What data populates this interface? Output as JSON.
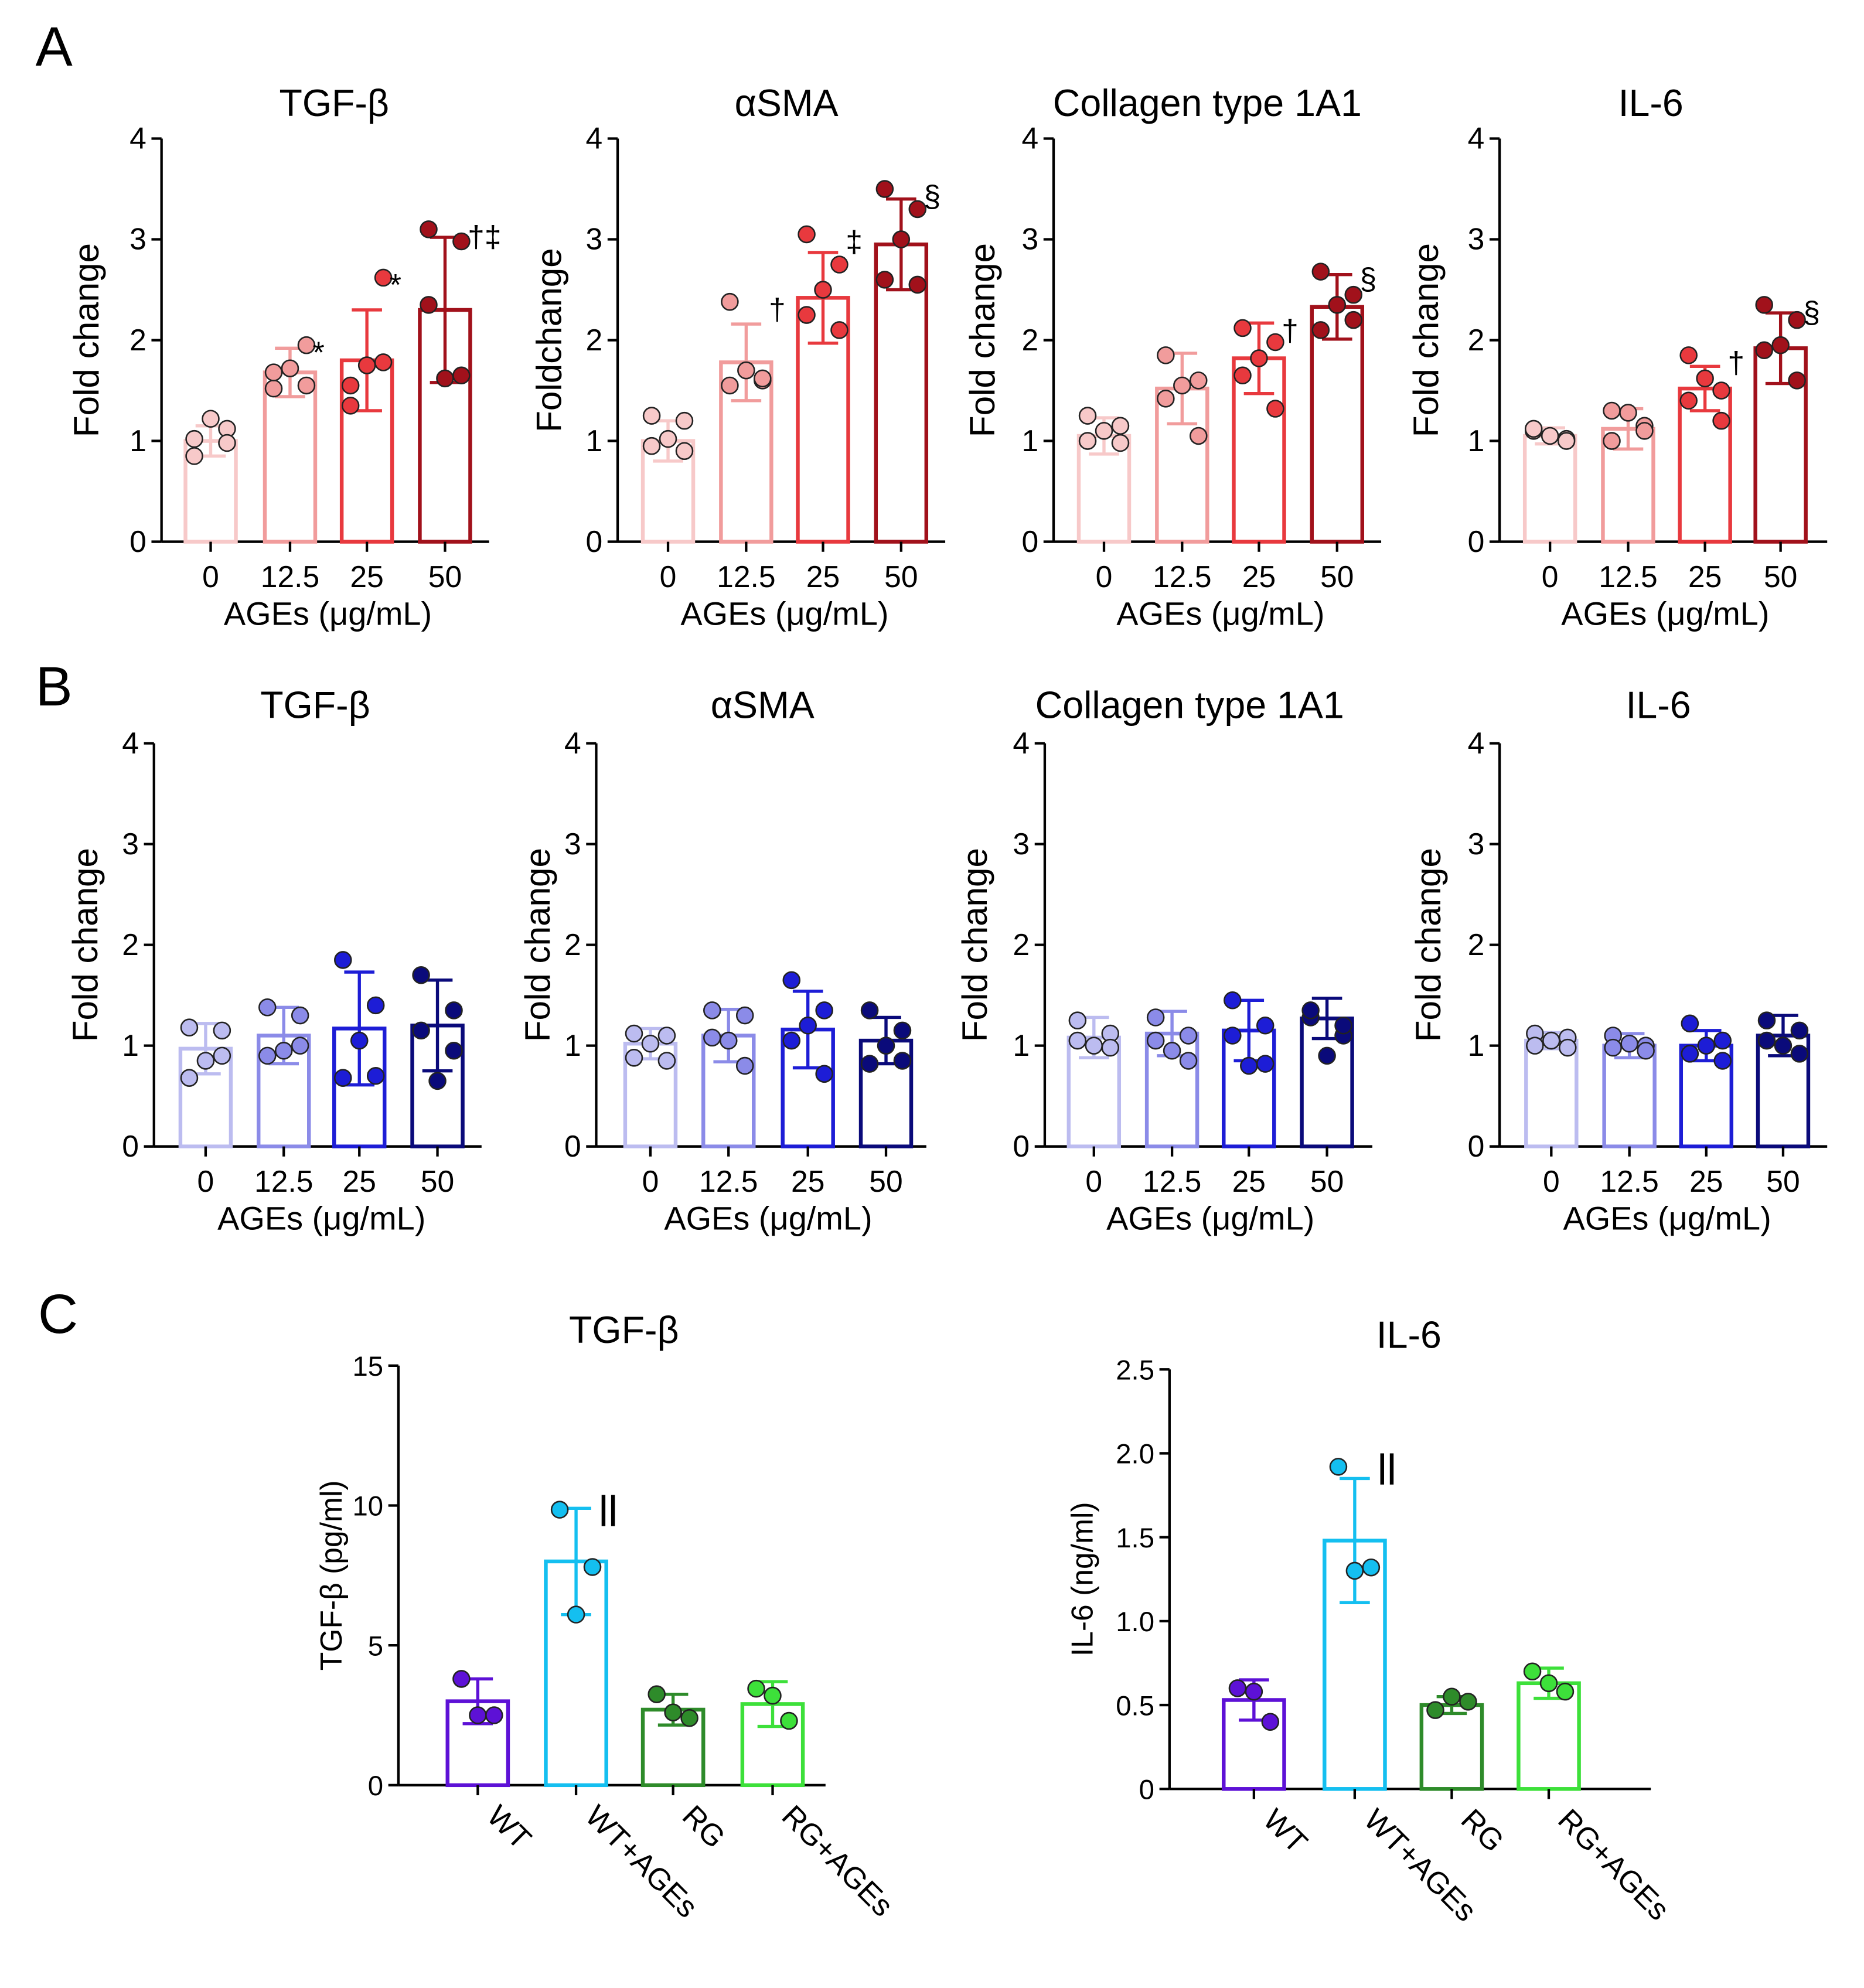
{
  "panel_labels": {
    "a": "A",
    "b": "B",
    "c": "C"
  },
  "colors": {
    "panelA": [
      "#f7c9c9",
      "#f19c9c",
      "#e8393e",
      "#a1111b"
    ],
    "panelB": [
      "#bcbcf0",
      "#8b8be8",
      "#1d1dd6",
      "#0a0a7a"
    ],
    "panelC": [
      "#5d11d6",
      "#14bff0",
      "#2e8b2a",
      "#3de03a"
    ]
  },
  "chart_data": [
    {
      "id": "A1",
      "panel": "A",
      "type": "bar",
      "title": "TGF-β",
      "ylabel": "Fold change",
      "xlabel": "AGEs (μg/mL)",
      "ylim": [
        0,
        4
      ],
      "yticks": [
        "0",
        "1",
        "2",
        "3",
        "4"
      ],
      "categories": [
        "0",
        "12.5",
        "25",
        "50"
      ],
      "values": [
        1.0,
        1.68,
        1.8,
        2.3
      ],
      "errors": [
        0.15,
        0.24,
        0.5,
        0.72
      ],
      "points": [
        [
          0.85,
          1.12,
          1.02,
          0.98,
          1.22
        ],
        [
          1.52,
          1.95,
          1.68,
          1.55,
          1.72
        ],
        [
          1.35,
          2.62,
          1.55,
          1.78,
          1.75
        ],
        [
          3.1,
          2.98,
          2.35,
          1.65,
          1.62
        ]
      ],
      "annotations": [
        "",
        "*",
        "*",
        "†‡"
      ]
    },
    {
      "id": "A2",
      "panel": "A",
      "type": "bar",
      "title": "αSMA",
      "ylabel": "Foldchange",
      "xlabel": "AGEs (μg/mL)",
      "ylim": [
        0,
        4
      ],
      "yticks": [
        "0",
        "1",
        "2",
        "3",
        "4"
      ],
      "categories": [
        "0",
        "12.5",
        "25",
        "50"
      ],
      "values": [
        1.0,
        1.78,
        2.42,
        2.95
      ],
      "errors": [
        0.2,
        0.38,
        0.45,
        0.45
      ],
      "points": [
        [
          1.25,
          1.2,
          0.95,
          0.9,
          1.02
        ],
        [
          2.38,
          1.6,
          1.55,
          1.62,
          1.7
        ],
        [
          3.05,
          2.75,
          2.25,
          2.1,
          2.5
        ],
        [
          3.5,
          3.3,
          2.6,
          2.55,
          3.0
        ]
      ],
      "annotations": [
        "",
        "†",
        "‡",
        "§"
      ]
    },
    {
      "id": "A3",
      "panel": "A",
      "type": "bar",
      "title": "Collagen type 1A1",
      "ylabel": "Fold change",
      "xlabel": "AGEs (μg/mL)",
      "ylim": [
        0,
        4
      ],
      "yticks": [
        "0",
        "1",
        "2",
        "3",
        "4"
      ],
      "categories": [
        "0",
        "12.5",
        "25",
        "50"
      ],
      "values": [
        1.05,
        1.52,
        1.82,
        2.33
      ],
      "errors": [
        0.18,
        0.35,
        0.35,
        0.32
      ],
      "points": [
        [
          1.25,
          1.15,
          1.0,
          0.98,
          1.1
        ],
        [
          1.85,
          1.6,
          1.42,
          1.05,
          1.55
        ],
        [
          2.12,
          1.98,
          1.65,
          1.32,
          1.82
        ],
        [
          2.68,
          2.45,
          2.1,
          2.2,
          2.35
        ]
      ],
      "annotations": [
        "",
        "",
        "†",
        "§"
      ]
    },
    {
      "id": "A4",
      "panel": "A",
      "type": "bar",
      "title": "IL-6",
      "ylabel": "Fold change",
      "xlabel": "AGEs (μg/mL)",
      "ylim": [
        0,
        4
      ],
      "yticks": [
        "0",
        "1",
        "2",
        "3",
        "4"
      ],
      "categories": [
        "0",
        "12.5",
        "25",
        "50"
      ],
      "values": [
        1.05,
        1.12,
        1.52,
        1.92
      ],
      "errors": [
        0.08,
        0.2,
        0.22,
        0.35
      ],
      "points": [
        [
          1.1,
          1.02,
          1.12,
          1.0,
          1.05
        ],
        [
          1.3,
          1.15,
          1.0,
          1.1,
          1.28
        ],
        [
          1.85,
          1.5,
          1.4,
          1.2,
          1.62
        ],
        [
          2.35,
          2.2,
          1.9,
          1.6,
          1.95
        ]
      ],
      "annotations": [
        "",
        "",
        "†",
        "§"
      ]
    },
    {
      "id": "B1",
      "panel": "B",
      "type": "bar",
      "title": "TGF-β",
      "ylabel": "Fold change",
      "xlabel": "AGEs (μg/mL)",
      "ylim": [
        0,
        4
      ],
      "yticks": [
        "0",
        "1",
        "2",
        "3",
        "4"
      ],
      "categories": [
        "0",
        "12.5",
        "25",
        "50"
      ],
      "values": [
        0.97,
        1.1,
        1.17,
        1.2
      ],
      "errors": [
        0.25,
        0.28,
        0.56,
        0.45
      ],
      "points": [
        [
          1.18,
          1.15,
          0.68,
          0.9,
          0.85
        ],
        [
          1.38,
          1.3,
          0.9,
          1.0,
          0.95
        ],
        [
          1.85,
          1.4,
          0.68,
          0.7,
          1.05
        ],
        [
          1.7,
          1.35,
          1.15,
          0.95,
          0.65
        ]
      ],
      "annotations": [
        "",
        "",
        "",
        ""
      ]
    },
    {
      "id": "B2",
      "panel": "B",
      "type": "bar",
      "title": "αSMA",
      "ylabel": "Fold change",
      "xlabel": "AGEs (μg/mL)",
      "ylim": [
        0,
        4
      ],
      "yticks": [
        "0",
        "1",
        "2",
        "3",
        "4"
      ],
      "categories": [
        "0",
        "12.5",
        "25",
        "50"
      ],
      "values": [
        1.02,
        1.1,
        1.16,
        1.05
      ],
      "errors": [
        0.15,
        0.26,
        0.38,
        0.23
      ],
      "points": [
        [
          1.12,
          1.1,
          0.88,
          0.85,
          1.02
        ],
        [
          1.35,
          1.3,
          1.08,
          0.8,
          1.05
        ],
        [
          1.65,
          1.35,
          1.05,
          0.72,
          1.2
        ],
        [
          1.35,
          1.15,
          0.82,
          0.85,
          1.0
        ]
      ],
      "annotations": [
        "",
        "",
        "",
        ""
      ]
    },
    {
      "id": "B3",
      "panel": "B",
      "type": "bar",
      "title": "Collagen type 1A1",
      "ylabel": "Fold change",
      "xlabel": "AGEs (μg/mL)",
      "ylim": [
        0,
        4
      ],
      "yticks": [
        "0",
        "1",
        "2",
        "3",
        "4"
      ],
      "categories": [
        "0",
        "12.5",
        "25",
        "50"
      ],
      "values": [
        1.08,
        1.12,
        1.15,
        1.27
      ],
      "errors": [
        0.2,
        0.22,
        0.3,
        0.2
      ],
      "points": [
        [
          1.25,
          1.12,
          1.05,
          0.98,
          1.0
        ],
        [
          1.28,
          1.1,
          1.05,
          0.85,
          0.95
        ],
        [
          1.45,
          1.2,
          1.1,
          0.82,
          0.8
        ],
        [
          1.28,
          1.1,
          1.35,
          1.2,
          0.9
        ]
      ],
      "annotations": [
        "",
        "",
        "",
        ""
      ]
    },
    {
      "id": "B4",
      "panel": "B",
      "type": "bar",
      "title": "IL-6",
      "ylabel": "Fold change",
      "xlabel": "AGEs (μg/mL)",
      "ylim": [
        0,
        4
      ],
      "yticks": [
        "0",
        "1",
        "2",
        "3",
        "4"
      ],
      "categories": [
        "0",
        "12.5",
        "25",
        "50"
      ],
      "values": [
        1.05,
        1.0,
        1.0,
        1.1
      ],
      "errors": [
        0.08,
        0.12,
        0.15,
        0.2
      ],
      "points": [
        [
          1.12,
          1.08,
          1.0,
          0.98,
          1.05
        ],
        [
          1.1,
          1.0,
          0.98,
          0.95,
          1.02
        ],
        [
          1.22,
          1.05,
          0.92,
          0.85,
          1.0
        ],
        [
          1.25,
          1.15,
          1.05,
          0.92,
          1.0
        ]
      ],
      "annotations": [
        "",
        "",
        "",
        ""
      ]
    },
    {
      "id": "C1",
      "panel": "C",
      "type": "bar",
      "title": "TGF-β",
      "ylabel": "TGF-β (pg/ml)",
      "xlabel": "",
      "ylim": [
        0,
        15
      ],
      "yticks": [
        "0",
        "5",
        "10",
        "15"
      ],
      "categories": [
        "WT",
        "WT+AGEs",
        "RG",
        "RG+AGEs"
      ],
      "values": [
        3.0,
        8.0,
        2.7,
        2.9
      ],
      "errors": [
        0.8,
        1.9,
        0.55,
        0.8
      ],
      "points": [
        [
          3.8,
          2.5,
          2.5
        ],
        [
          9.85,
          7.8,
          6.1
        ],
        [
          3.25,
          2.4,
          2.6
        ],
        [
          3.45,
          2.3,
          3.2
        ]
      ],
      "annotations": [
        "",
        "ll",
        "",
        ""
      ]
    },
    {
      "id": "C2",
      "panel": "C",
      "type": "bar",
      "title": "IL-6",
      "ylabel": "IL-6 (ng/ml)",
      "xlabel": "",
      "ylim": [
        0,
        2.5
      ],
      "yticks": [
        "0",
        "0.5",
        "1.0",
        "1.5",
        "2.0",
        "2.5"
      ],
      "categories": [
        "WT",
        "WT+AGEs",
        "RG",
        "RG+AGEs"
      ],
      "values": [
        0.53,
        1.48,
        0.5,
        0.63
      ],
      "errors": [
        0.12,
        0.37,
        0.05,
        0.09
      ],
      "points": [
        [
          0.6,
          0.4,
          0.58
        ],
        [
          1.92,
          1.32,
          1.3
        ],
        [
          0.47,
          0.52,
          0.55
        ],
        [
          0.7,
          0.58,
          0.63
        ]
      ],
      "annotations": [
        "",
        "ll",
        "",
        ""
      ]
    }
  ]
}
